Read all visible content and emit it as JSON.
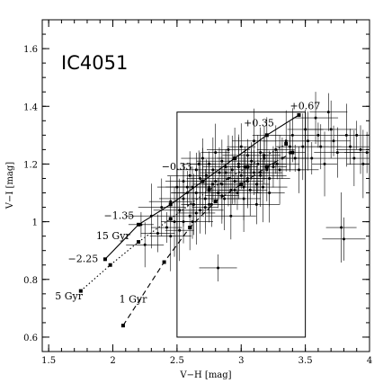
{
  "chart_data": {
    "type": "scatter",
    "title": "IC4051",
    "xlabel": "V−H [mag]",
    "ylabel": "V−I [mag]",
    "xlim": [
      1.45,
      4.0
    ],
    "ylim": [
      0.55,
      1.7
    ],
    "xticks": [
      1.5,
      2,
      2.5,
      3,
      3.5,
      4
    ],
    "xtick_labels": [
      "1.5",
      "2",
      "2.5",
      "3",
      "3.5",
      "4"
    ],
    "yticks": [
      0.6,
      0.8,
      1,
      1.2,
      1.4,
      1.6
    ],
    "ytick_labels": [
      "0.6",
      "0.8",
      "1",
      "1.2",
      "1.4",
      "1.6"
    ],
    "grid": false,
    "series": [
      {
        "style": "points-with-errorbars",
        "x": [
          2.22,
          2.25,
          2.3,
          2.35,
          2.38,
          2.42,
          2.45,
          2.48,
          2.5,
          2.52,
          2.55,
          2.55,
          2.58,
          2.6,
          2.6,
          2.62,
          2.63,
          2.65,
          2.65,
          2.67,
          2.68,
          2.7,
          2.7,
          2.72,
          2.73,
          2.75,
          2.75,
          2.77,
          2.78,
          2.8,
          2.8,
          2.82,
          2.83,
          2.85,
          2.85,
          2.87,
          2.88,
          2.9,
          2.9,
          2.92,
          2.93,
          2.95,
          2.95,
          2.97,
          2.98,
          3.0,
          3.0,
          3.02,
          3.03,
          3.05,
          3.05,
          3.07,
          3.08,
          3.1,
          3.1,
          3.12,
          3.13,
          3.15,
          3.15,
          3.17,
          3.18,
          3.2,
          3.2,
          3.22,
          3.25,
          3.27,
          3.3,
          3.32,
          3.35,
          3.38,
          3.4,
          3.42,
          3.45,
          3.48,
          3.5,
          3.52,
          3.55,
          3.58,
          3.6,
          3.62,
          3.65,
          3.68,
          3.7,
          3.72,
          3.75,
          3.78,
          3.8,
          3.82,
          3.85,
          3.88,
          3.9,
          3.93,
          3.95,
          3.98,
          2.52,
          2.62,
          2.72,
          2.82,
          2.92,
          3.02,
          3.12,
          3.22,
          2.58,
          2.68,
          2.78,
          2.88,
          2.98,
          3.08,
          3.18,
          3.28,
          3.38,
          2.45,
          2.55,
          2.65,
          2.75,
          2.85,
          2.95,
          3.05,
          3.15,
          3.25
        ],
        "y": [
          0.99,
          0.92,
          1.02,
          0.96,
          1.05,
          0.98,
          1.07,
          1.0,
          1.12,
          1.04,
          1.14,
          1.08,
          1.1,
          1.16,
          1.02,
          1.12,
          1.06,
          1.18,
          1.1,
          1.2,
          1.04,
          1.14,
          1.22,
          1.08,
          1.16,
          1.12,
          1.2,
          1.06,
          1.18,
          1.14,
          1.24,
          1.1,
          1.17,
          1.13,
          1.21,
          1.08,
          1.19,
          1.15,
          1.25,
          1.11,
          1.18,
          1.14,
          1.22,
          1.1,
          1.2,
          1.16,
          1.26,
          1.12,
          1.19,
          1.15,
          1.23,
          1.11,
          1.21,
          1.17,
          1.28,
          1.13,
          1.2,
          1.16,
          1.24,
          1.12,
          1.22,
          1.18,
          1.3,
          1.15,
          1.2,
          1.25,
          1.18,
          1.22,
          1.28,
          1.24,
          1.3,
          1.22,
          1.18,
          1.26,
          1.32,
          1.28,
          1.22,
          1.36,
          1.3,
          1.26,
          1.2,
          1.38,
          1.32,
          1.28,
          1.24,
          0.98,
          0.94,
          1.3,
          1.26,
          1.22,
          1.3,
          1.25,
          1.2,
          1.24,
          0.97,
          1.0,
          1.05,
          0.84,
          1.02,
          1.08,
          1.06,
          1.1,
          1.12,
          1.15,
          1.13,
          1.17,
          1.19,
          1.21,
          1.23,
          1.2,
          1.26,
          0.95,
          1.0,
          1.03,
          1.06,
          1.09,
          1.11,
          1.14,
          1.17,
          1.19
        ]
      },
      {
        "name": "15 Gyr",
        "style": "solid",
        "x": [
          1.94,
          2.2,
          2.45,
          2.7,
          2.95,
          3.2,
          3.45
        ],
        "y": [
          0.87,
          0.99,
          1.06,
          1.14,
          1.22,
          1.3,
          1.37
        ]
      },
      {
        "name": "5 Gyr",
        "style": "dotted",
        "x": [
          1.75,
          1.98,
          2.2,
          2.45,
          2.75,
          3.05,
          3.35
        ],
        "y": [
          0.76,
          0.85,
          0.93,
          1.01,
          1.11,
          1.19,
          1.27
        ]
      },
      {
        "name": "1 Gyr",
        "style": "dashed",
        "x": [
          2.08,
          2.4,
          2.6,
          2.8,
          3.0,
          3.2,
          3.4
        ],
        "y": [
          0.64,
          0.86,
          0.98,
          1.07,
          1.13,
          1.19,
          1.24
        ]
      }
    ],
    "annotations": [
      {
        "text": "IC4051",
        "x": 1.63,
        "y": 1.56,
        "kind": "title"
      },
      {
        "text": "+0.67",
        "x": 3.38,
        "y": 1.39
      },
      {
        "text": "+0.35",
        "x": 3.02,
        "y": 1.33
      },
      {
        "text": "−0.33",
        "x": 2.38,
        "y": 1.18
      },
      {
        "text": "−1.35",
        "x": 1.93,
        "y": 1.01
      },
      {
        "text": "15 Gyr",
        "x": 1.87,
        "y": 0.94
      },
      {
        "text": "−2.25",
        "x": 1.65,
        "y": 0.86
      },
      {
        "text": "5 Gyr",
        "x": 1.55,
        "y": 0.73
      },
      {
        "text": "1 Gyr",
        "x": 2.05,
        "y": 0.72
      }
    ],
    "boxes": [
      {
        "x0": 2.5,
        "x1": 3.5,
        "y0": 0.6,
        "y1": 1.38
      }
    ]
  }
}
